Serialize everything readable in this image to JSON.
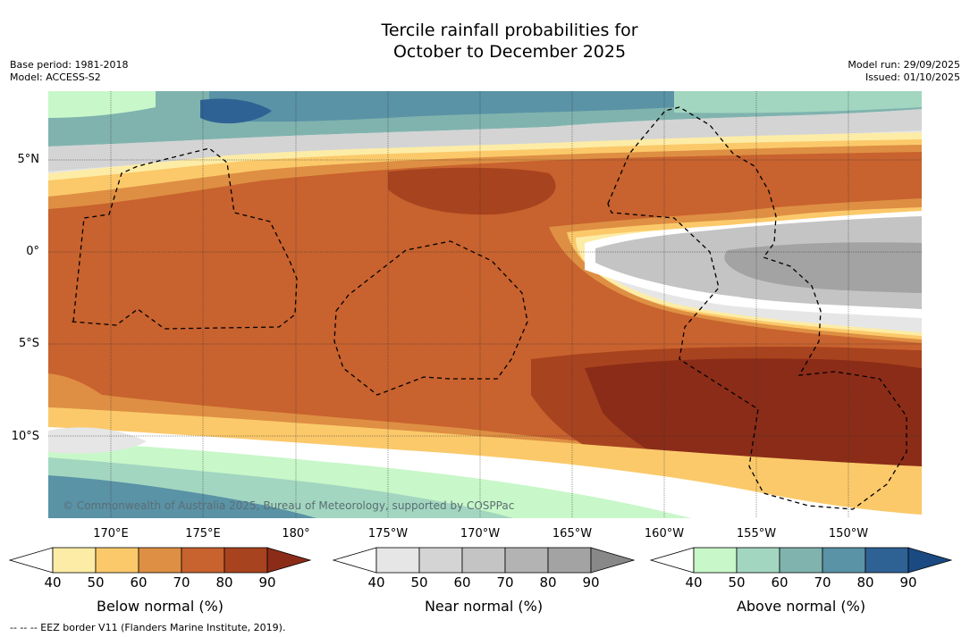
{
  "title_line1": "Tercile rainfall probabilities for",
  "title_line2": "October to December 2025",
  "base_period": "Base period: 1981-2018",
  "model": "Model: ACCESS-S2",
  "model_run": "Model run: 29/09/2025",
  "issued": "Issued: 01/10/2025",
  "lat_labels": [
    "5°N",
    "0°",
    "5°S",
    "10°S"
  ],
  "lon_labels": [
    "170°E",
    "175°E",
    "180°",
    "175°W",
    "170°W",
    "165°W",
    "160°W",
    "155°W",
    "150°W"
  ],
  "copyright": "© Commonwealth of Australia 2025, Bureau of Meteorology, supported by COSPPac",
  "eez_note": "--  --  -- EEZ border V11 (Flanders Marine Institute, 2019).",
  "colorbars": [
    {
      "title": "Below normal (%)",
      "ticks": [
        "40",
        "50",
        "60",
        "70",
        "80",
        "90"
      ],
      "colors": [
        "#ffffff",
        "#fdeca6",
        "#fbc96a",
        "#de8f43",
        "#c8622e",
        "#a8431f",
        "#8b2c18"
      ]
    },
    {
      "title": "Near normal (%)",
      "ticks": [
        "40",
        "50",
        "60",
        "70",
        "80",
        "90"
      ],
      "colors": [
        "#ffffff",
        "#e6e6e6",
        "#d4d4d4",
        "#c4c4c4",
        "#b3b3b3",
        "#a3a3a3",
        "#888888"
      ]
    },
    {
      "title": "Above normal (%)",
      "ticks": [
        "40",
        "50",
        "60",
        "70",
        "80",
        "90"
      ],
      "colors": [
        "#ffffff",
        "#c8f7c9",
        "#a3d6c0",
        "#80b3ae",
        "#5a92a6",
        "#2f6294",
        "#1b4a82"
      ]
    }
  ],
  "colors": {
    "white_band": "#ffffff",
    "ocean_deep": "#2f6294"
  }
}
